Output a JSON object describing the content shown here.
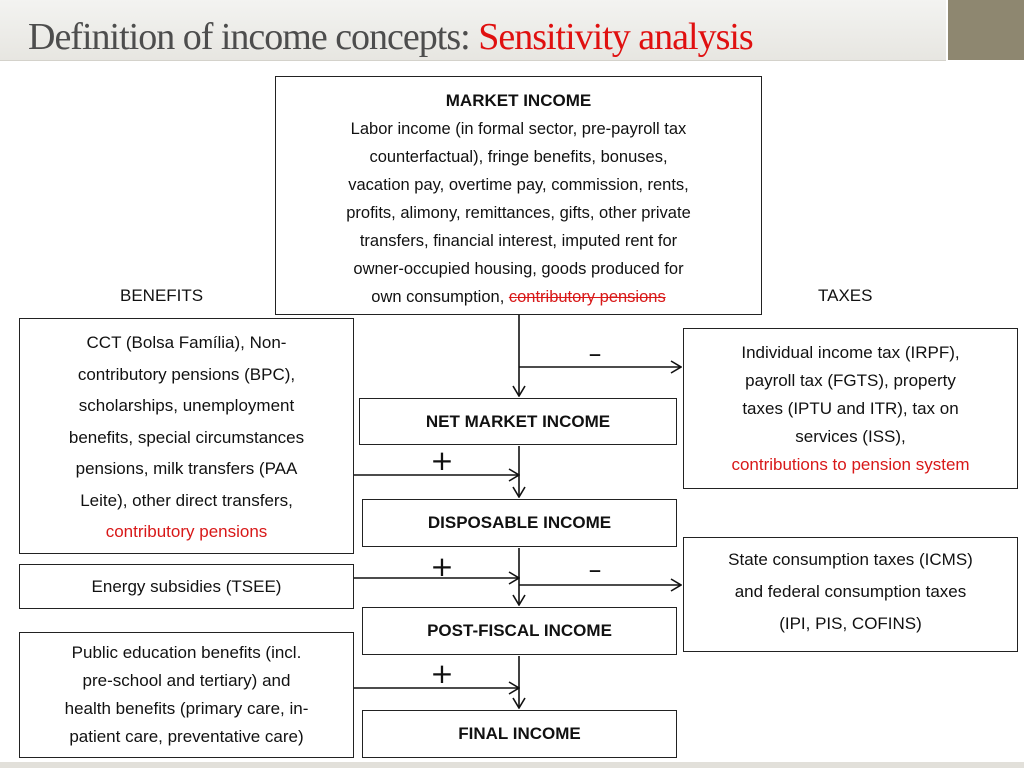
{
  "title": {
    "main": "Definition of income concepts: ",
    "accent": "Sensitivity analysis"
  },
  "market_income": {
    "heading": "MARKET INCOME",
    "lines": [
      "Labor income (in formal sector, pre-payroll tax",
      "counterfactual), fringe benefits, bonuses,",
      "vacation pay, overtime pay, commission, rents,",
      "profits, alimony, remittances, gifts, other private",
      "transfers, financial interest, imputed rent for",
      "owner-occupied housing, goods produced for"
    ],
    "last_line_prefix": "own consumption, ",
    "last_line_struck": "contributory pensions"
  },
  "labels": {
    "benefits": "BENEFITS",
    "taxes": "TAXES"
  },
  "benefits_box": {
    "lines": [
      "CCT (Bolsa Família), Non-",
      "contributory pensions (BPC),",
      "scholarships, unemployment",
      "benefits, special circumstances",
      "pensions, milk transfers (PAA",
      "Leite), other direct transfers,"
    ],
    "highlight": "contributory pensions"
  },
  "energy_box": {
    "text": "Energy subsidies (TSEE)"
  },
  "education_box": {
    "lines": [
      "Public education benefits (incl.",
      "pre-school and tertiary) and",
      "health benefits (primary care, in-",
      "patient care, preventative care)"
    ]
  },
  "income_tax_box": {
    "lines": [
      "Individual income tax (IRPF),",
      "payroll tax (FGTS), property",
      "taxes (IPTU and ITR), tax on",
      "services (ISS),"
    ],
    "highlight": "contributions to pension system"
  },
  "consumption_tax_box": {
    "lines": [
      "State consumption taxes (ICMS)",
      "and federal consumption taxes",
      "(IPI, PIS, COFINS)"
    ]
  },
  "stages": {
    "net_market": "NET MARKET INCOME",
    "disposable": "DISPOSABLE INCOME",
    "post_fiscal": "POST-FISCAL INCOME",
    "final": "FINAL INCOME"
  },
  "operators": {
    "minus_taxes": "–",
    "plus_benefits": "+",
    "plus_energy": "+",
    "minus_consumption": "–",
    "plus_education": "+"
  }
}
